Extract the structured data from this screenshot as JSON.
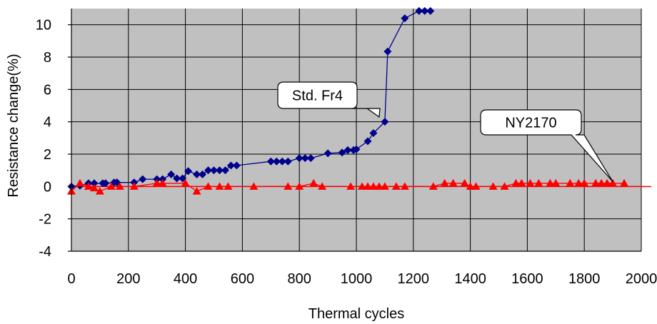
{
  "chart_data": {
    "type": "line",
    "xlabel": "Thermal cycles",
    "ylabel": "Resistance change(%)",
    "xlim": [
      0,
      2000
    ],
    "ylim": [
      -4,
      11
    ],
    "x_ticks": [
      "0",
      "200",
      "400",
      "600",
      "800",
      "1000",
      "1200",
      "1400",
      "1600",
      "1800",
      "2000"
    ],
    "y_ticks": [
      "-4",
      "-2",
      "0",
      "2",
      "4",
      "6",
      "8",
      "10"
    ],
    "grid": true,
    "plot_background": "#c0c0c0",
    "reference_line": {
      "y": 0,
      "color": "#ff0000"
    },
    "callouts": [
      {
        "text": "Std. Fr4",
        "points_to": [
          1080,
          4.3
        ]
      },
      {
        "text": "NY2170",
        "points_to": [
          1900,
          0.3
        ]
      }
    ],
    "series": [
      {
        "label": "Std. Fr4",
        "marker": "diamond",
        "color": "#00008b",
        "points": [
          [
            0,
            0.0
          ],
          [
            30,
            0.05
          ],
          [
            60,
            0.2
          ],
          [
            80,
            0.2
          ],
          [
            110,
            0.2
          ],
          [
            120,
            0.2
          ],
          [
            150,
            0.25
          ],
          [
            160,
            0.25
          ],
          [
            220,
            0.25
          ],
          [
            250,
            0.45
          ],
          [
            300,
            0.45
          ],
          [
            320,
            0.45
          ],
          [
            350,
            0.75
          ],
          [
            370,
            0.5
          ],
          [
            390,
            0.5
          ],
          [
            410,
            0.95
          ],
          [
            440,
            0.75
          ],
          [
            460,
            0.75
          ],
          [
            480,
            1.0
          ],
          [
            500,
            1.0
          ],
          [
            520,
            1.0
          ],
          [
            540,
            1.0
          ],
          [
            560,
            1.3
          ],
          [
            580,
            1.3
          ],
          [
            700,
            1.55
          ],
          [
            720,
            1.55
          ],
          [
            740,
            1.55
          ],
          [
            760,
            1.55
          ],
          [
            800,
            1.75
          ],
          [
            820,
            1.75
          ],
          [
            840,
            1.75
          ],
          [
            900,
            2.05
          ],
          [
            950,
            2.1
          ],
          [
            970,
            2.25
          ],
          [
            990,
            2.25
          ],
          [
            1000,
            2.3
          ],
          [
            1040,
            2.8
          ],
          [
            1060,
            3.3
          ],
          [
            1100,
            4.0
          ],
          [
            1110,
            8.35
          ],
          [
            1170,
            10.4
          ],
          [
            1220,
            10.85
          ],
          [
            1240,
            10.85
          ],
          [
            1260,
            10.85
          ]
        ]
      },
      {
        "label": "NY2170",
        "marker": "triangle",
        "color": "#ff0000",
        "points": [
          [
            0,
            -0.3
          ],
          [
            30,
            0.2
          ],
          [
            60,
            0.0
          ],
          [
            80,
            -0.1
          ],
          [
            100,
            -0.3
          ],
          [
            140,
            0.0
          ],
          [
            170,
            0.0
          ],
          [
            220,
            0.0
          ],
          [
            300,
            0.2
          ],
          [
            320,
            0.2
          ],
          [
            400,
            0.2
          ],
          [
            440,
            -0.3
          ],
          [
            480,
            0.0
          ],
          [
            520,
            0.0
          ],
          [
            550,
            0.0
          ],
          [
            640,
            0.0
          ],
          [
            760,
            0.0
          ],
          [
            800,
            0.0
          ],
          [
            850,
            0.2
          ],
          [
            880,
            0.0
          ],
          [
            980,
            0.0
          ],
          [
            1020,
            0.0
          ],
          [
            1040,
            0.0
          ],
          [
            1060,
            0.0
          ],
          [
            1080,
            0.0
          ],
          [
            1100,
            0.0
          ],
          [
            1140,
            0.0
          ],
          [
            1170,
            0.0
          ],
          [
            1270,
            0.0
          ],
          [
            1310,
            0.2
          ],
          [
            1340,
            0.2
          ],
          [
            1380,
            0.2
          ],
          [
            1400,
            0.0
          ],
          [
            1420,
            0.0
          ],
          [
            1480,
            0.0
          ],
          [
            1520,
            0.0
          ],
          [
            1560,
            0.2
          ],
          [
            1580,
            0.2
          ],
          [
            1610,
            0.2
          ],
          [
            1640,
            0.2
          ],
          [
            1680,
            0.2
          ],
          [
            1700,
            0.2
          ],
          [
            1750,
            0.2
          ],
          [
            1780,
            0.2
          ],
          [
            1800,
            0.2
          ],
          [
            1840,
            0.2
          ],
          [
            1860,
            0.2
          ],
          [
            1880,
            0.2
          ],
          [
            1900,
            0.2
          ],
          [
            1940,
            0.2
          ]
        ]
      }
    ]
  }
}
